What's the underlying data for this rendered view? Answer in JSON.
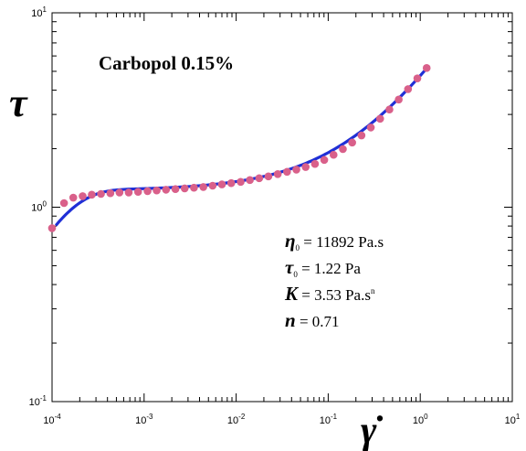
{
  "chart_data": {
    "type": "scatter",
    "title": "Carbopol 0.15%",
    "xlabel": "γ̇",
    "ylabel": "τ",
    "xscale": "log",
    "yscale": "log",
    "xlim": [
      0.0001,
      10
    ],
    "ylim": [
      0.1,
      10
    ],
    "grid": false,
    "colors": {
      "points": "#d9608a",
      "fit": "#1f2fd6"
    },
    "x_ticks": [
      {
        "base": "10",
        "exp": "-4",
        "value": 0.0001
      },
      {
        "base": "10",
        "exp": "-3",
        "value": 0.001
      },
      {
        "base": "10",
        "exp": "-2",
        "value": 0.01
      },
      {
        "base": "10",
        "exp": "-1",
        "value": 0.1
      },
      {
        "base": "10",
        "exp": "0",
        "value": 1
      },
      {
        "base": "10",
        "exp": "1",
        "value": 10
      }
    ],
    "y_ticks": [
      {
        "base": "10",
        "exp": "-1",
        "value": 0.1
      },
      {
        "base": "10",
        "exp": "0",
        "value": 1
      },
      {
        "base": "10",
        "exp": "1",
        "value": 10
      }
    ],
    "series": [
      {
        "kind": "points",
        "x": [
          0.0001,
          0.000135,
          0.00017,
          0.000215,
          0.00027,
          0.00034,
          0.00043,
          0.00054,
          0.00068,
          0.00086,
          0.00109,
          0.00137,
          0.00173,
          0.00219,
          0.00276,
          0.00348,
          0.0044,
          0.00555,
          0.007,
          0.00884,
          0.0112,
          0.0141,
          0.0178,
          0.0224,
          0.0283,
          0.0357,
          0.0451,
          0.0569,
          0.0718,
          0.0906,
          0.1144,
          0.1444,
          0.1822,
          0.23,
          0.2903,
          0.3664,
          0.4625,
          0.5838,
          0.7369,
          0.9301,
          1.174
        ],
        "y": [
          0.78,
          1.05,
          1.12,
          1.14,
          1.16,
          1.17,
          1.18,
          1.19,
          1.19,
          1.2,
          1.21,
          1.22,
          1.23,
          1.24,
          1.25,
          1.26,
          1.27,
          1.29,
          1.31,
          1.33,
          1.35,
          1.38,
          1.41,
          1.44,
          1.48,
          1.52,
          1.56,
          1.61,
          1.67,
          1.75,
          1.86,
          1.99,
          2.15,
          2.34,
          2.57,
          2.85,
          3.18,
          3.58,
          4.05,
          4.6,
          5.2
        ]
      },
      {
        "kind": "line",
        "eta0": 11892,
        "tau0": 1.22,
        "K": 3.53,
        "n": 0.71
      }
    ],
    "annotations": [
      {
        "symbol": "η",
        "sub": "0",
        "text": "= 11892 Pa.s"
      },
      {
        "symbol": "τ",
        "sub": "0",
        "text": "= 1.22 Pa"
      },
      {
        "symbol": "K",
        "text": "= 3.53 Pa.s",
        "sup": "n"
      },
      {
        "symbol": "n",
        "text": "= 0.71"
      }
    ]
  }
}
